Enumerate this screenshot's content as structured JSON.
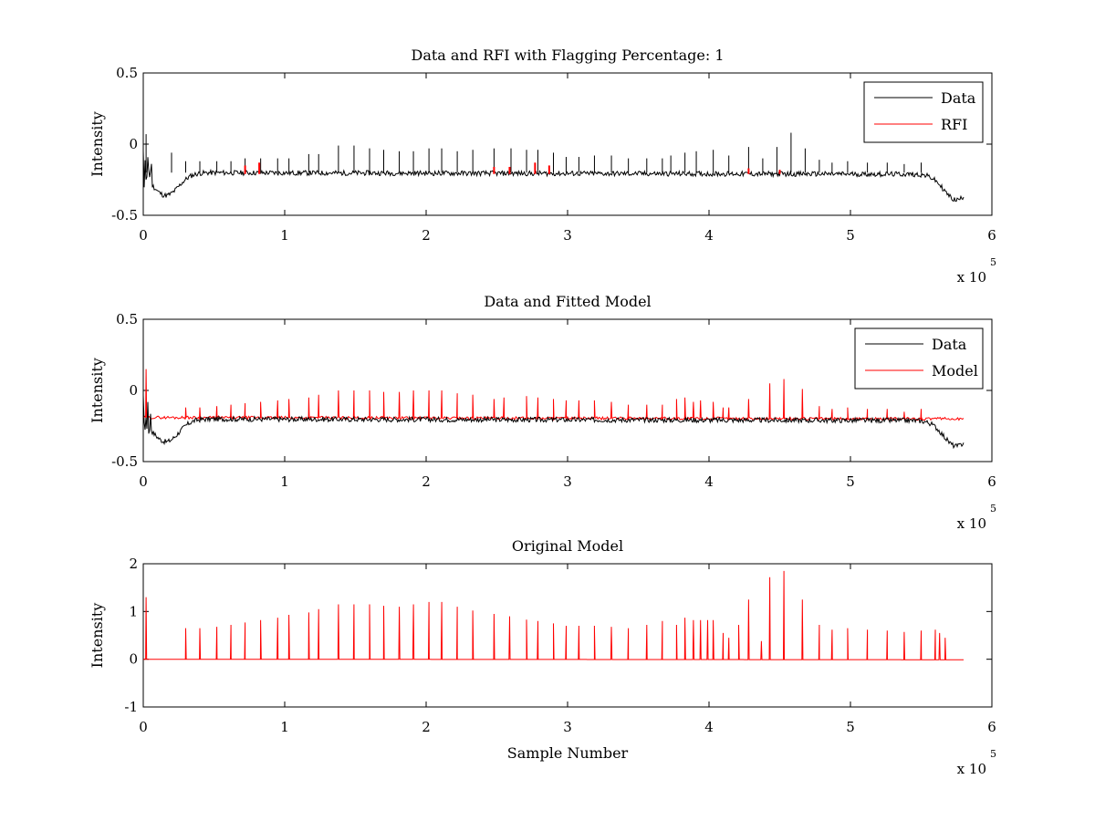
{
  "figure": {
    "background": "#ffffff"
  },
  "colors": {
    "data": "#000000",
    "rfi": "#ff0000",
    "model": "#ff0000"
  },
  "chart_data": [
    {
      "type": "line",
      "title": "Data and RFI with Flagging Percentage: 1",
      "xlabel": "",
      "ylabel": "Intensity",
      "xlim": [
        0,
        600000
      ],
      "ylim": [
        -0.5,
        0.5
      ],
      "xticks": [
        0,
        1,
        2,
        3,
        4,
        5,
        6
      ],
      "yticks": [
        "-0.5",
        "0",
        "0.5"
      ],
      "x_multiplier": "x 10",
      "x_exponent": "5",
      "legend": {
        "position": "top-right",
        "entries": [
          "Data",
          "RFI"
        ]
      },
      "series": [
        {
          "name": "Data",
          "color": "#000000",
          "baseline": -0.2,
          "spikes": [
            [
              2000,
              0.07
            ],
            [
              20000,
              -0.06
            ],
            [
              30000,
              -0.12
            ],
            [
              40000,
              -0.12
            ],
            [
              52000,
              -0.12
            ],
            [
              62000,
              -0.12
            ],
            [
              72000,
              -0.1
            ],
            [
              83000,
              -0.1
            ],
            [
              95000,
              -0.1
            ],
            [
              103000,
              -0.1
            ],
            [
              117000,
              -0.07
            ],
            [
              124000,
              -0.07
            ],
            [
              138000,
              -0.01
            ],
            [
              149000,
              -0.01
            ],
            [
              160000,
              -0.03
            ],
            [
              170000,
              -0.04
            ],
            [
              181000,
              -0.05
            ],
            [
              191000,
              -0.05
            ],
            [
              202000,
              -0.03
            ],
            [
              211000,
              -0.03
            ],
            [
              222000,
              -0.05
            ],
            [
              233000,
              -0.04
            ],
            [
              248000,
              -0.03
            ],
            [
              260000,
              -0.03
            ],
            [
              271000,
              -0.04
            ],
            [
              279000,
              -0.04
            ],
            [
              290000,
              -0.06
            ],
            [
              299000,
              -0.09
            ],
            [
              308000,
              -0.09
            ],
            [
              319000,
              -0.08
            ],
            [
              331000,
              -0.08
            ],
            [
              343000,
              -0.1
            ],
            [
              356000,
              -0.1
            ],
            [
              367000,
              -0.1
            ],
            [
              373000,
              -0.08
            ],
            [
              383000,
              -0.06
            ],
            [
              391000,
              -0.05
            ],
            [
              403000,
              -0.04
            ],
            [
              414000,
              -0.08
            ],
            [
              428000,
              -0.02
            ],
            [
              438000,
              -0.1
            ],
            [
              448000,
              -0.02
            ],
            [
              458000,
              0.08
            ],
            [
              468000,
              -0.03
            ],
            [
              478000,
              -0.11
            ],
            [
              487000,
              -0.13
            ],
            [
              498000,
              -0.12
            ],
            [
              512000,
              -0.13
            ],
            [
              526000,
              -0.13
            ],
            [
              538000,
              -0.14
            ],
            [
              550000,
              -0.13
            ]
          ],
          "dips": [
            [
              16000,
              -0.36
            ],
            [
              575000,
              -0.38
            ]
          ]
        },
        {
          "name": "RFI",
          "color": "#ff0000",
          "spikes": [
            [
              72000,
              -0.15
            ],
            [
              82000,
              -0.13
            ],
            [
              248000,
              -0.16
            ],
            [
              259000,
              -0.16
            ],
            [
              277000,
              -0.13
            ],
            [
              287000,
              -0.15
            ],
            [
              428000,
              -0.17
            ],
            [
              450000,
              -0.18
            ]
          ]
        }
      ]
    },
    {
      "type": "line",
      "title": "Data and Fitted Model",
      "xlabel": "",
      "ylabel": "Intensity",
      "xlim": [
        0,
        600000
      ],
      "ylim": [
        -0.5,
        0.5
      ],
      "xticks": [
        0,
        1,
        2,
        3,
        4,
        5,
        6
      ],
      "yticks": [
        "-0.5",
        "0",
        "0.5"
      ],
      "x_multiplier": "x 10",
      "x_exponent": "5",
      "legend": {
        "position": "top-right",
        "entries": [
          "Data",
          "Model"
        ]
      },
      "series": [
        {
          "name": "Data",
          "color": "#000000",
          "baseline": -0.2,
          "dips": [
            [
              16000,
              -0.36
            ],
            [
              575000,
              -0.38
            ]
          ]
        },
        {
          "name": "Model",
          "color": "#ff0000",
          "baseline": -0.19,
          "spikes": [
            [
              2000,
              0.15
            ],
            [
              30000,
              -0.12
            ],
            [
              40000,
              -0.12
            ],
            [
              52000,
              -0.11
            ],
            [
              62000,
              -0.1
            ],
            [
              72000,
              -0.09
            ],
            [
              83000,
              -0.08
            ],
            [
              95000,
              -0.07
            ],
            [
              103000,
              -0.06
            ],
            [
              117000,
              -0.05
            ],
            [
              124000,
              -0.03
            ],
            [
              138000,
              0.0
            ],
            [
              149000,
              0.0
            ],
            [
              160000,
              0.0
            ],
            [
              170000,
              -0.01
            ],
            [
              181000,
              -0.01
            ],
            [
              191000,
              0.0
            ],
            [
              202000,
              0.0
            ],
            [
              211000,
              0.0
            ],
            [
              222000,
              -0.02
            ],
            [
              233000,
              -0.03
            ],
            [
              248000,
              -0.06
            ],
            [
              255000,
              -0.05
            ],
            [
              271000,
              -0.04
            ],
            [
              279000,
              -0.05
            ],
            [
              290000,
              -0.06
            ],
            [
              299000,
              -0.07
            ],
            [
              308000,
              -0.07
            ],
            [
              319000,
              -0.07
            ],
            [
              331000,
              -0.08
            ],
            [
              343000,
              -0.1
            ],
            [
              356000,
              -0.1
            ],
            [
              367000,
              -0.1
            ],
            [
              377000,
              -0.06
            ],
            [
              383000,
              -0.05
            ],
            [
              389000,
              -0.08
            ],
            [
              394000,
              -0.07
            ],
            [
              403000,
              -0.08
            ],
            [
              410000,
              -0.12
            ],
            [
              414000,
              -0.12
            ],
            [
              428000,
              -0.06
            ],
            [
              443000,
              0.05
            ],
            [
              453000,
              0.08
            ],
            [
              466000,
              0.01
            ],
            [
              478000,
              -0.11
            ],
            [
              487000,
              -0.13
            ],
            [
              498000,
              -0.12
            ],
            [
              512000,
              -0.13
            ],
            [
              526000,
              -0.13
            ],
            [
              538000,
              -0.15
            ],
            [
              550000,
              -0.13
            ]
          ]
        }
      ]
    },
    {
      "type": "line",
      "title": "Original Model",
      "xlabel": "Sample Number",
      "ylabel": "Intensity",
      "xlim": [
        0,
        600000
      ],
      "ylim": [
        -1,
        2
      ],
      "xticks": [
        0,
        1,
        2,
        3,
        4,
        5,
        6
      ],
      "yticks": [
        "-1",
        "0",
        "1",
        "2"
      ],
      "x_multiplier": "x 10",
      "x_exponent": "5",
      "series": [
        {
          "name": "",
          "color": "#ff0000",
          "baseline": 0,
          "spikes": [
            [
              2000,
              1.3
            ],
            [
              30000,
              0.65
            ],
            [
              40000,
              0.65
            ],
            [
              52000,
              0.68
            ],
            [
              62000,
              0.72
            ],
            [
              72000,
              0.77
            ],
            [
              83000,
              0.82
            ],
            [
              95000,
              0.87
            ],
            [
              103000,
              0.93
            ],
            [
              117000,
              0.98
            ],
            [
              124000,
              1.05
            ],
            [
              138000,
              1.15
            ],
            [
              149000,
              1.15
            ],
            [
              160000,
              1.15
            ],
            [
              170000,
              1.12
            ],
            [
              181000,
              1.1
            ],
            [
              191000,
              1.15
            ],
            [
              202000,
              1.2
            ],
            [
              211000,
              1.2
            ],
            [
              222000,
              1.1
            ],
            [
              233000,
              1.02
            ],
            [
              248000,
              0.95
            ],
            [
              259000,
              0.9
            ],
            [
              271000,
              0.83
            ],
            [
              279000,
              0.8
            ],
            [
              290000,
              0.75
            ],
            [
              299000,
              0.7
            ],
            [
              308000,
              0.7
            ],
            [
              319000,
              0.7
            ],
            [
              331000,
              0.68
            ],
            [
              343000,
              0.65
            ],
            [
              356000,
              0.72
            ],
            [
              367000,
              0.8
            ],
            [
              377000,
              0.72
            ],
            [
              383000,
              0.87
            ],
            [
              389000,
              0.82
            ],
            [
              394000,
              0.82
            ],
            [
              399000,
              0.82
            ],
            [
              403000,
              0.82
            ],
            [
              410000,
              0.55
            ],
            [
              414000,
              0.45
            ],
            [
              421000,
              0.72
            ],
            [
              428000,
              1.25
            ],
            [
              437000,
              0.38
            ],
            [
              443000,
              1.72
            ],
            [
              453000,
              1.85
            ],
            [
              466000,
              1.25
            ],
            [
              478000,
              0.72
            ],
            [
              487000,
              0.62
            ],
            [
              498000,
              0.65
            ],
            [
              512000,
              0.62
            ],
            [
              526000,
              0.6
            ],
            [
              538000,
              0.57
            ],
            [
              550000,
              0.6
            ],
            [
              560000,
              0.62
            ],
            [
              563000,
              0.55
            ],
            [
              567000,
              0.45
            ]
          ]
        }
      ]
    }
  ]
}
